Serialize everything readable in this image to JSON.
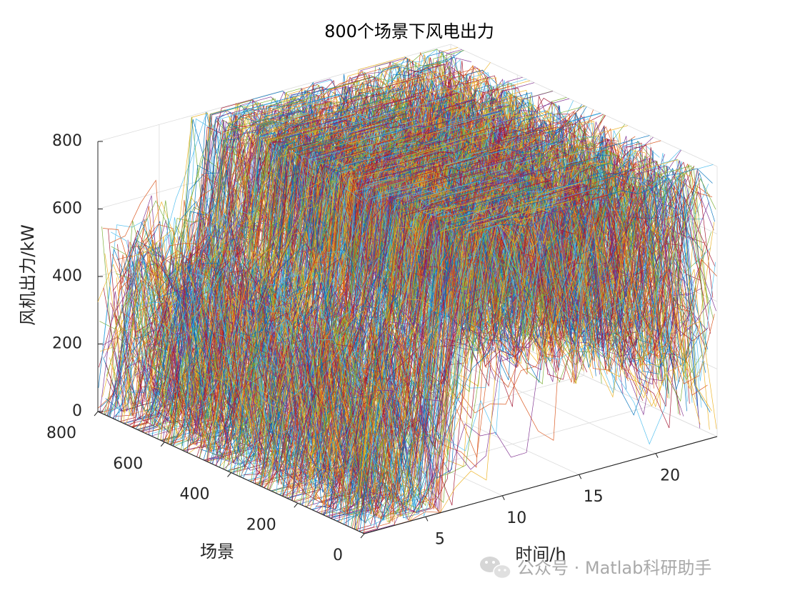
{
  "chart_data": {
    "type": "line",
    "projection": "3d",
    "title": "800个场景下风电出力",
    "xlabel": "时间/h",
    "ylabel": "场景",
    "zlabel": "风机出力/kW",
    "xlim": [
      1,
      24
    ],
    "ylim": [
      0,
      800
    ],
    "zlim": [
      0,
      800
    ],
    "xticks": [
      "5",
      "10",
      "15",
      "20"
    ],
    "yticks": [
      "0",
      "200",
      "400",
      "600",
      "800"
    ],
    "zticks": [
      "0",
      "200",
      "400",
      "600",
      "800"
    ],
    "grid": true,
    "legend": "none",
    "series_count": 800,
    "hour_profile_level": [
      0.22,
      0.22,
      0.24,
      0.26,
      0.28,
      0.3,
      0.58,
      0.82,
      0.92,
      0.93,
      0.9,
      0.88,
      0.85,
      0.83,
      0.8,
      0.78,
      0.77,
      0.75,
      0.74,
      0.72,
      0.7,
      0.68,
      0.62,
      0.45
    ],
    "colors": [
      "#0072BD",
      "#D95319",
      "#EDB120",
      "#7E2F8E",
      "#77AC30",
      "#4DBEEE",
      "#A2142F"
    ]
  },
  "watermark": {
    "icon": "wechat-icon",
    "text": "公众号 · Matlab科研助手"
  }
}
